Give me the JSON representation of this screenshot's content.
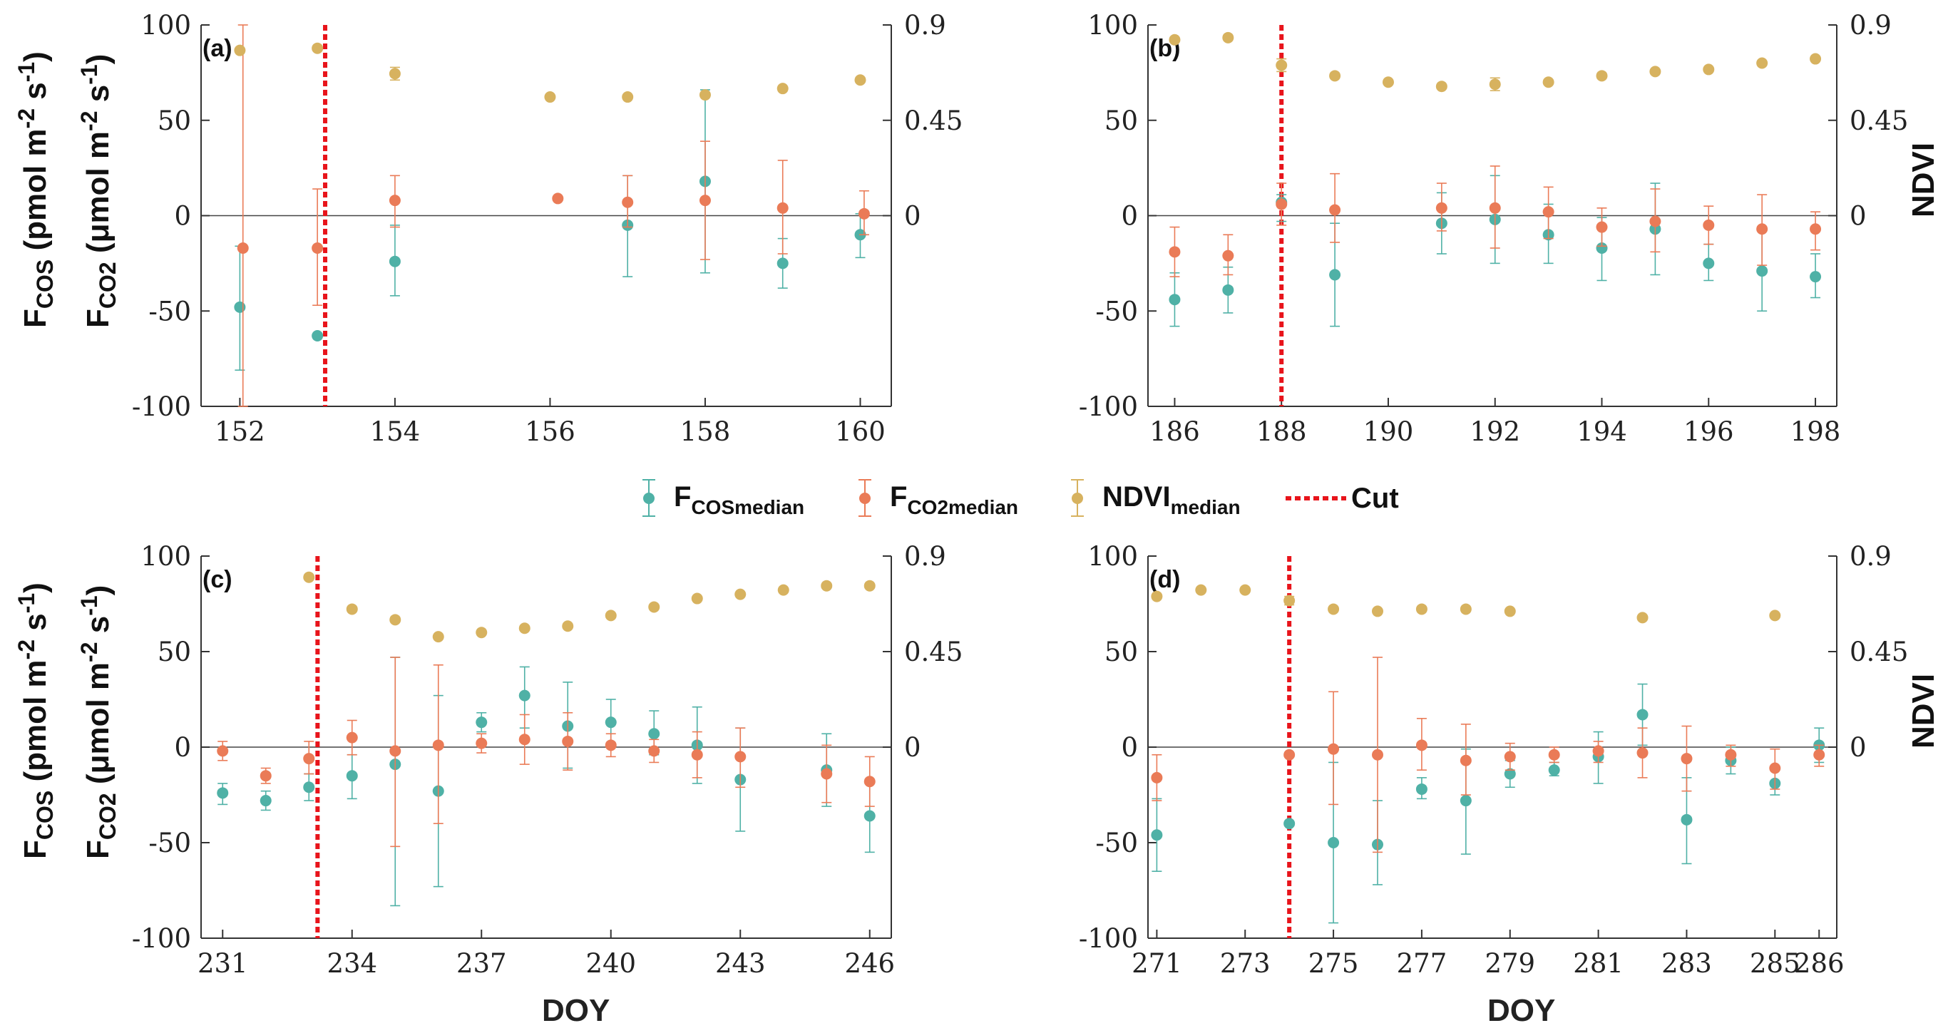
{
  "colors": {
    "cos": "#4fb1a6",
    "co2": "#ea7b57",
    "ndvi": "#d7b25f",
    "cut": "#e8141b",
    "axis": "#333333"
  },
  "labels": {
    "fcos_main": "F",
    "fcos_sub": "COS",
    "fcos_unit": " (pmol m",
    "fcos_unit_sup1": "-2",
    "fcos_unit_mid": " s",
    "fcos_unit_sup2": "-1",
    "fcos_unit_end": ")",
    "fco2_main": "F",
    "fco2_sub": "CO2",
    "fco2_unit": " (μmol m",
    "fco2_unit_sup1": "-2",
    "fco2_unit_mid": " s",
    "fco2_unit_sup2": "-1",
    "fco2_unit_end": ")",
    "ndvi": "NDVI",
    "doy": "DOY"
  },
  "legend": {
    "cos_main": "F",
    "cos_sub": "COSmedian",
    "co2_main": "F",
    "co2_sub": "CO2median",
    "ndvi_main": "NDVI",
    "ndvi_sub": "median",
    "cut": "Cut"
  },
  "chart_data": [
    {
      "panel": "(a)",
      "type": "scatter",
      "xlim": [
        151.5,
        160.4
      ],
      "xticks": [
        152,
        154,
        156,
        158,
        160
      ],
      "ylim": [
        -100,
        100
      ],
      "yticks": [
        100,
        50,
        0,
        -50,
        -100
      ],
      "y2lim": [
        -0.9,
        0.9
      ],
      "y2ticks": [
        0.9,
        0.45,
        0
      ],
      "y2ticklabels": [
        "0.9",
        "0.45",
        "0"
      ],
      "cut_x": 153.1,
      "cos": [
        [
          152,
          -48,
          -81,
          -16
        ],
        [
          153,
          -63,
          null,
          null
        ],
        [
          154,
          -24,
          -42,
          -5
        ],
        [
          157,
          -5,
          -32,
          21
        ],
        [
          158,
          18,
          -30,
          66
        ],
        [
          159,
          -25,
          -38,
          -12
        ],
        [
          160,
          -10,
          -22,
          1
        ]
      ],
      "co2": [
        [
          152.04,
          -17,
          -100,
          100
        ],
        [
          153,
          -17,
          -47,
          14
        ],
        [
          154,
          8,
          -6,
          21
        ],
        [
          156.1,
          9,
          null,
          null
        ],
        [
          157,
          7,
          -6,
          21
        ],
        [
          158,
          8,
          -23,
          39
        ],
        [
          159,
          4,
          -20,
          29
        ],
        [
          160.05,
          1,
          -10,
          13
        ]
      ],
      "ndvi": [
        [
          152,
          0.78,
          null,
          null
        ],
        [
          153,
          0.79,
          null,
          null
        ],
        [
          154,
          0.67,
          0.64,
          0.7
        ],
        [
          156,
          0.56,
          null,
          null
        ],
        [
          157,
          0.56,
          null,
          null
        ],
        [
          158,
          0.57,
          null,
          null
        ],
        [
          159,
          0.6,
          null,
          null
        ],
        [
          160,
          0.64,
          null,
          null
        ]
      ]
    },
    {
      "panel": "(b)",
      "type": "scatter",
      "xlim": [
        185.5,
        198.4
      ],
      "xticks": [
        186,
        188,
        190,
        192,
        194,
        196,
        198
      ],
      "ylim": [
        -100,
        100
      ],
      "yticks": [
        100,
        50,
        0,
        -50,
        -100
      ],
      "y2lim": [
        -0.9,
        0.9
      ],
      "y2ticks": [
        0.9,
        0.45,
        0
      ],
      "y2ticklabels": [
        "0.9",
        "0.45",
        "0"
      ],
      "cut_x": 188,
      "cos": [
        [
          186,
          -44,
          -58,
          -30
        ],
        [
          187,
          -39,
          -51,
          -27
        ],
        [
          188,
          7,
          -3,
          11
        ],
        [
          189,
          -31,
          -58,
          -4
        ],
        [
          191,
          -4,
          -20,
          12
        ],
        [
          192,
          -2,
          -25,
          21
        ],
        [
          193,
          -10,
          -25,
          6
        ],
        [
          194,
          -17,
          -34,
          -1
        ],
        [
          195,
          -7,
          -31,
          17
        ],
        [
          196,
          -25,
          -34,
          -15
        ],
        [
          197,
          -29,
          -50,
          -7
        ],
        [
          198,
          -32,
          -43,
          -20
        ]
      ],
      "co2": [
        [
          186,
          -19,
          -32,
          -6
        ],
        [
          187,
          -21,
          -31,
          -10
        ],
        [
          188,
          6,
          -5,
          17
        ],
        [
          189,
          3,
          -14,
          22
        ],
        [
          191,
          4,
          -8,
          17
        ],
        [
          192,
          4,
          -17,
          26
        ],
        [
          193,
          2,
          -12,
          15
        ],
        [
          194,
          -6,
          -16,
          4
        ],
        [
          195,
          -3,
          -19,
          14
        ],
        [
          196,
          -5,
          -15,
          5
        ],
        [
          197,
          -7,
          -26,
          11
        ],
        [
          198,
          -7,
          -18,
          2
        ]
      ],
      "ndvi": [
        [
          186,
          0.83,
          null,
          null
        ],
        [
          187,
          0.84,
          null,
          null
        ],
        [
          188,
          0.71,
          0.68,
          0.74
        ],
        [
          189,
          0.66,
          null,
          null
        ],
        [
          190,
          0.63,
          null,
          null
        ],
        [
          191,
          0.61,
          null,
          null
        ],
        [
          192,
          0.62,
          0.59,
          0.65
        ],
        [
          193,
          0.63,
          null,
          null
        ],
        [
          194,
          0.66,
          null,
          null
        ],
        [
          195,
          0.68,
          null,
          null
        ],
        [
          196,
          0.69,
          null,
          null
        ],
        [
          197,
          0.72,
          null,
          null
        ],
        [
          198,
          0.74,
          null,
          null
        ]
      ]
    },
    {
      "panel": "(c)",
      "type": "scatter",
      "xlim": [
        230.5,
        246.5
      ],
      "xticks": [
        231,
        234,
        237,
        240,
        243,
        246
      ],
      "ylim": [
        -100,
        100
      ],
      "yticks": [
        100,
        50,
        0,
        -50,
        -100
      ],
      "y2lim": [
        -0.9,
        0.9
      ],
      "y2ticks": [
        0.9,
        0.45,
        0
      ],
      "y2ticklabels": [
        "0.9",
        "0.45",
        "0"
      ],
      "cut_x": 233.2,
      "cos": [
        [
          231,
          -24,
          -30,
          -19
        ],
        [
          232,
          -28,
          -33,
          -23
        ],
        [
          233,
          -21,
          -28,
          -14
        ],
        [
          234,
          -15,
          -27,
          -4
        ],
        [
          235,
          -9,
          -83,
          47
        ],
        [
          236,
          -23,
          -73,
          27
        ],
        [
          237,
          13,
          8,
          18
        ],
        [
          238,
          27,
          10,
          42
        ],
        [
          239,
          11,
          -11,
          34
        ],
        [
          240,
          13,
          1,
          25
        ],
        [
          241,
          7,
          -4,
          19
        ],
        [
          242,
          1,
          -19,
          21
        ],
        [
          243,
          -17,
          -44,
          10
        ],
        [
          245,
          -12,
          -31,
          7
        ],
        [
          246,
          -36,
          -55,
          -17
        ]
      ],
      "co2": [
        [
          231,
          -2,
          -7,
          3
        ],
        [
          232,
          -15,
          -19,
          -11
        ],
        [
          233,
          -6,
          -14,
          3
        ],
        [
          234,
          5,
          -4,
          14
        ],
        [
          235,
          -2,
          -52,
          47
        ],
        [
          236,
          1,
          -40,
          43
        ],
        [
          237,
          2,
          -3,
          7
        ],
        [
          238,
          4,
          -9,
          17
        ],
        [
          239,
          3,
          -12,
          18
        ],
        [
          240,
          1,
          -5,
          7
        ],
        [
          241,
          -2,
          -8,
          4
        ],
        [
          242,
          -4,
          -16,
          8
        ],
        [
          243,
          -5,
          -21,
          10
        ],
        [
          245,
          -14,
          -29,
          1
        ],
        [
          246,
          -18,
          -31,
          -5
        ]
      ],
      "ndvi": [
        [
          233,
          0.8,
          null,
          null
        ],
        [
          234,
          0.65,
          null,
          null
        ],
        [
          235,
          0.6,
          null,
          null
        ],
        [
          236,
          0.52,
          null,
          null
        ],
        [
          237,
          0.54,
          null,
          null
        ],
        [
          238,
          0.56,
          null,
          null
        ],
        [
          239,
          0.57,
          null,
          null
        ],
        [
          240,
          0.62,
          null,
          null
        ],
        [
          241,
          0.66,
          null,
          null
        ],
        [
          242,
          0.7,
          null,
          null
        ],
        [
          243,
          0.72,
          null,
          null
        ],
        [
          244,
          0.74,
          null,
          null
        ],
        [
          245,
          0.76,
          null,
          null
        ],
        [
          246,
          0.76,
          null,
          null
        ]
      ]
    },
    {
      "panel": "(d)",
      "type": "scatter",
      "xlim": [
        270.8,
        286.4
      ],
      "xticks": [
        271,
        273,
        275,
        277,
        279,
        281,
        283,
        285,
        286
      ],
      "ylim": [
        -100,
        100
      ],
      "yticks": [
        100,
        50,
        0,
        -50,
        -100
      ],
      "y2lim": [
        -0.9,
        0.9
      ],
      "y2ticks": [
        0.9,
        0.45,
        0
      ],
      "y2ticklabels": [
        "0.9",
        "0.45",
        "0"
      ],
      "cut_x": 274,
      "cos": [
        [
          271,
          -46,
          -65,
          -27
        ],
        [
          274,
          -40,
          null,
          null
        ],
        [
          275,
          -50,
          -92,
          -8
        ],
        [
          276,
          -51,
          -72,
          -28
        ],
        [
          277,
          -22,
          -27,
          -16
        ],
        [
          278,
          -28,
          -56,
          -1
        ],
        [
          279,
          -14,
          -21,
          -7
        ],
        [
          280,
          -12,
          -15,
          -8
        ],
        [
          281,
          -5,
          -19,
          8
        ],
        [
          282,
          17,
          1,
          33
        ],
        [
          283,
          -38,
          -61,
          -16
        ],
        [
          284,
          -7,
          -14,
          0
        ],
        [
          285,
          -19,
          -25,
          -12
        ],
        [
          286,
          1,
          -8,
          10
        ]
      ],
      "co2": [
        [
          271,
          -16,
          -28,
          -4
        ],
        [
          274,
          -4,
          null,
          null
        ],
        [
          275,
          -1,
          -30,
          29
        ],
        [
          276,
          -4,
          -55,
          47
        ],
        [
          277,
          1,
          -12,
          15
        ],
        [
          278,
          -7,
          -25,
          12
        ],
        [
          279,
          -5,
          -12,
          2
        ],
        [
          280,
          -4,
          -8,
          0
        ],
        [
          281,
          -2,
          -8,
          3
        ],
        [
          282,
          -3,
          -16,
          10
        ],
        [
          283,
          -6,
          -23,
          11
        ],
        [
          284,
          -4,
          -10,
          1
        ],
        [
          285,
          -11,
          -22,
          -1
        ],
        [
          286,
          -4,
          -10,
          1
        ]
      ],
      "ndvi": [
        [
          271,
          0.71,
          null,
          null
        ],
        [
          272,
          0.74,
          null,
          null
        ],
        [
          273,
          0.74,
          null,
          null
        ],
        [
          274,
          0.69,
          0.67,
          0.71
        ],
        [
          275,
          0.65,
          null,
          null
        ],
        [
          276,
          0.64,
          null,
          null
        ],
        [
          277,
          0.65,
          null,
          null
        ],
        [
          278,
          0.65,
          null,
          null
        ],
        [
          279,
          0.64,
          null,
          null
        ],
        [
          282,
          0.61,
          null,
          null
        ],
        [
          285,
          0.62,
          null,
          null
        ]
      ]
    }
  ]
}
